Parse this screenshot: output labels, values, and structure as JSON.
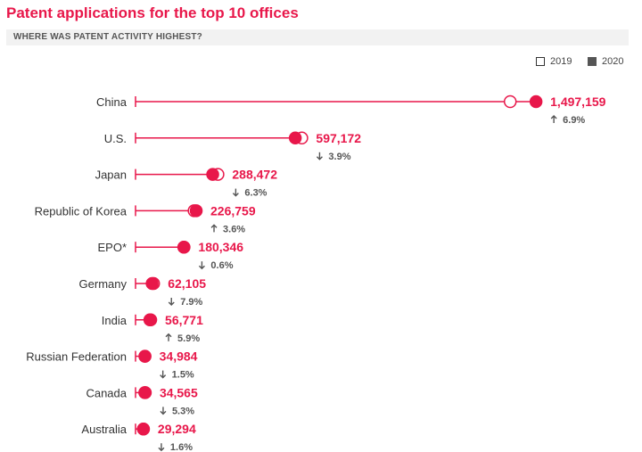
{
  "title": "Patent applications for the top 10 offices",
  "subtitle": "WHERE WAS PATENT ACTIVITY HIGHEST?",
  "legend": {
    "label_2019": "2019",
    "label_2020": "2020"
  },
  "colors": {
    "accent": "#e8174a",
    "text": "#333333",
    "muted": "#555555",
    "band": "#f2f2f2"
  },
  "chart_data": {
    "type": "dot",
    "orientation": "horizontal",
    "categories": [
      "China",
      "U.S.",
      "Japan",
      "Republic of Korea",
      "EPO*",
      "Germany",
      "India",
      "Russian Federation",
      "Canada",
      "Australia"
    ],
    "series": [
      {
        "name": "2019",
        "marker": "open-circle",
        "values": [
          1400661,
          621453,
          307969,
          218975,
          181406,
          67434,
          53627,
          35511,
          36488,
          29758
        ]
      },
      {
        "name": "2020",
        "marker": "filled-circle",
        "values": [
          1497159,
          597172,
          288472,
          226759,
          180346,
          62105,
          56771,
          34984,
          34565,
          29294
        ]
      }
    ],
    "value_labels": [
      "1,497,159",
      "597,172",
      "288,472",
      "226,759",
      "180,346",
      "62,105",
      "56,771",
      "34,984",
      "34,565",
      "29,294"
    ],
    "changes": [
      {
        "dir": "up",
        "text": "6.9%"
      },
      {
        "dir": "down",
        "text": "3.9%"
      },
      {
        "dir": "down",
        "text": "6.3%"
      },
      {
        "dir": "up",
        "text": "3.6%"
      },
      {
        "dir": "down",
        "text": "0.6%"
      },
      {
        "dir": "down",
        "text": "7.9%"
      },
      {
        "dir": "up",
        "text": "5.9%"
      },
      {
        "dir": "down",
        "text": "1.5%"
      },
      {
        "dir": "down",
        "text": "5.3%"
      },
      {
        "dir": "down",
        "text": "1.6%"
      }
    ],
    "xlim": [
      0,
      1500000
    ],
    "legend_position": "top-right",
    "grid": false
  }
}
